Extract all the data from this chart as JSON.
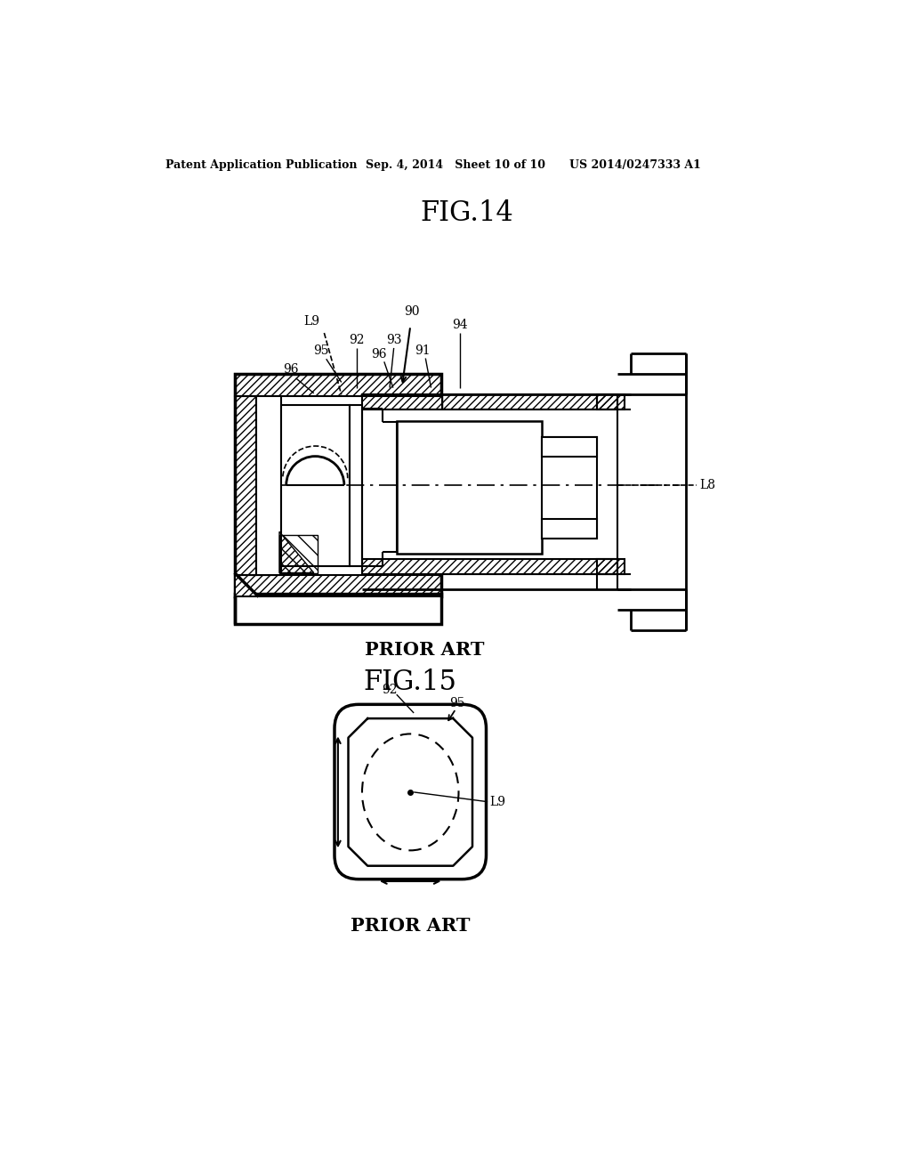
{
  "bg_color": "#ffffff",
  "line_color": "#000000",
  "header_text": "Patent Application Publication",
  "header_date": "Sep. 4, 2014   Sheet 10 of 10",
  "header_patent": "US 2014/0247333 A1",
  "fig14_title": "FIG.14",
  "fig15_title": "FIG.15",
  "prior_art": "PRIOR ART"
}
